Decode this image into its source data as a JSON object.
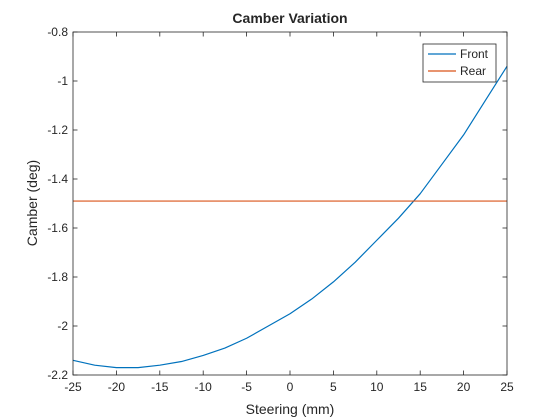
{
  "chart_data": {
    "type": "line",
    "title": "Camber Variation",
    "xlabel": "Steering (mm)",
    "ylabel": "Camber (deg)",
    "xlim": [
      -25,
      25
    ],
    "ylim": [
      -2.2,
      -0.8
    ],
    "xticks": [
      -25,
      -20,
      -15,
      -10,
      -5,
      0,
      5,
      10,
      15,
      20,
      25
    ],
    "yticks": [
      -2.2,
      -2,
      -1.8,
      -1.6,
      -1.4,
      -1.2,
      -1,
      -0.8
    ],
    "legend_position": "top-right",
    "grid": false,
    "series": [
      {
        "name": "Front",
        "color": "#0072BD",
        "x": [
          -25,
          -22.5,
          -20,
          -17.5,
          -15,
          -12.5,
          -10,
          -7.5,
          -5,
          -2.5,
          0,
          2.5,
          5,
          7.5,
          10,
          12.5,
          15,
          17.5,
          20,
          22.5,
          25
        ],
        "y": [
          -2.14,
          -2.16,
          -2.17,
          -2.17,
          -2.16,
          -2.145,
          -2.12,
          -2.09,
          -2.05,
          -2.0,
          -1.95,
          -1.89,
          -1.82,
          -1.74,
          -1.65,
          -1.56,
          -1.46,
          -1.34,
          -1.22,
          -1.08,
          -0.94
        ]
      },
      {
        "name": "Rear",
        "color": "#D95319",
        "x": [
          -25,
          25
        ],
        "y": [
          -1.49,
          -1.49
        ]
      }
    ]
  }
}
